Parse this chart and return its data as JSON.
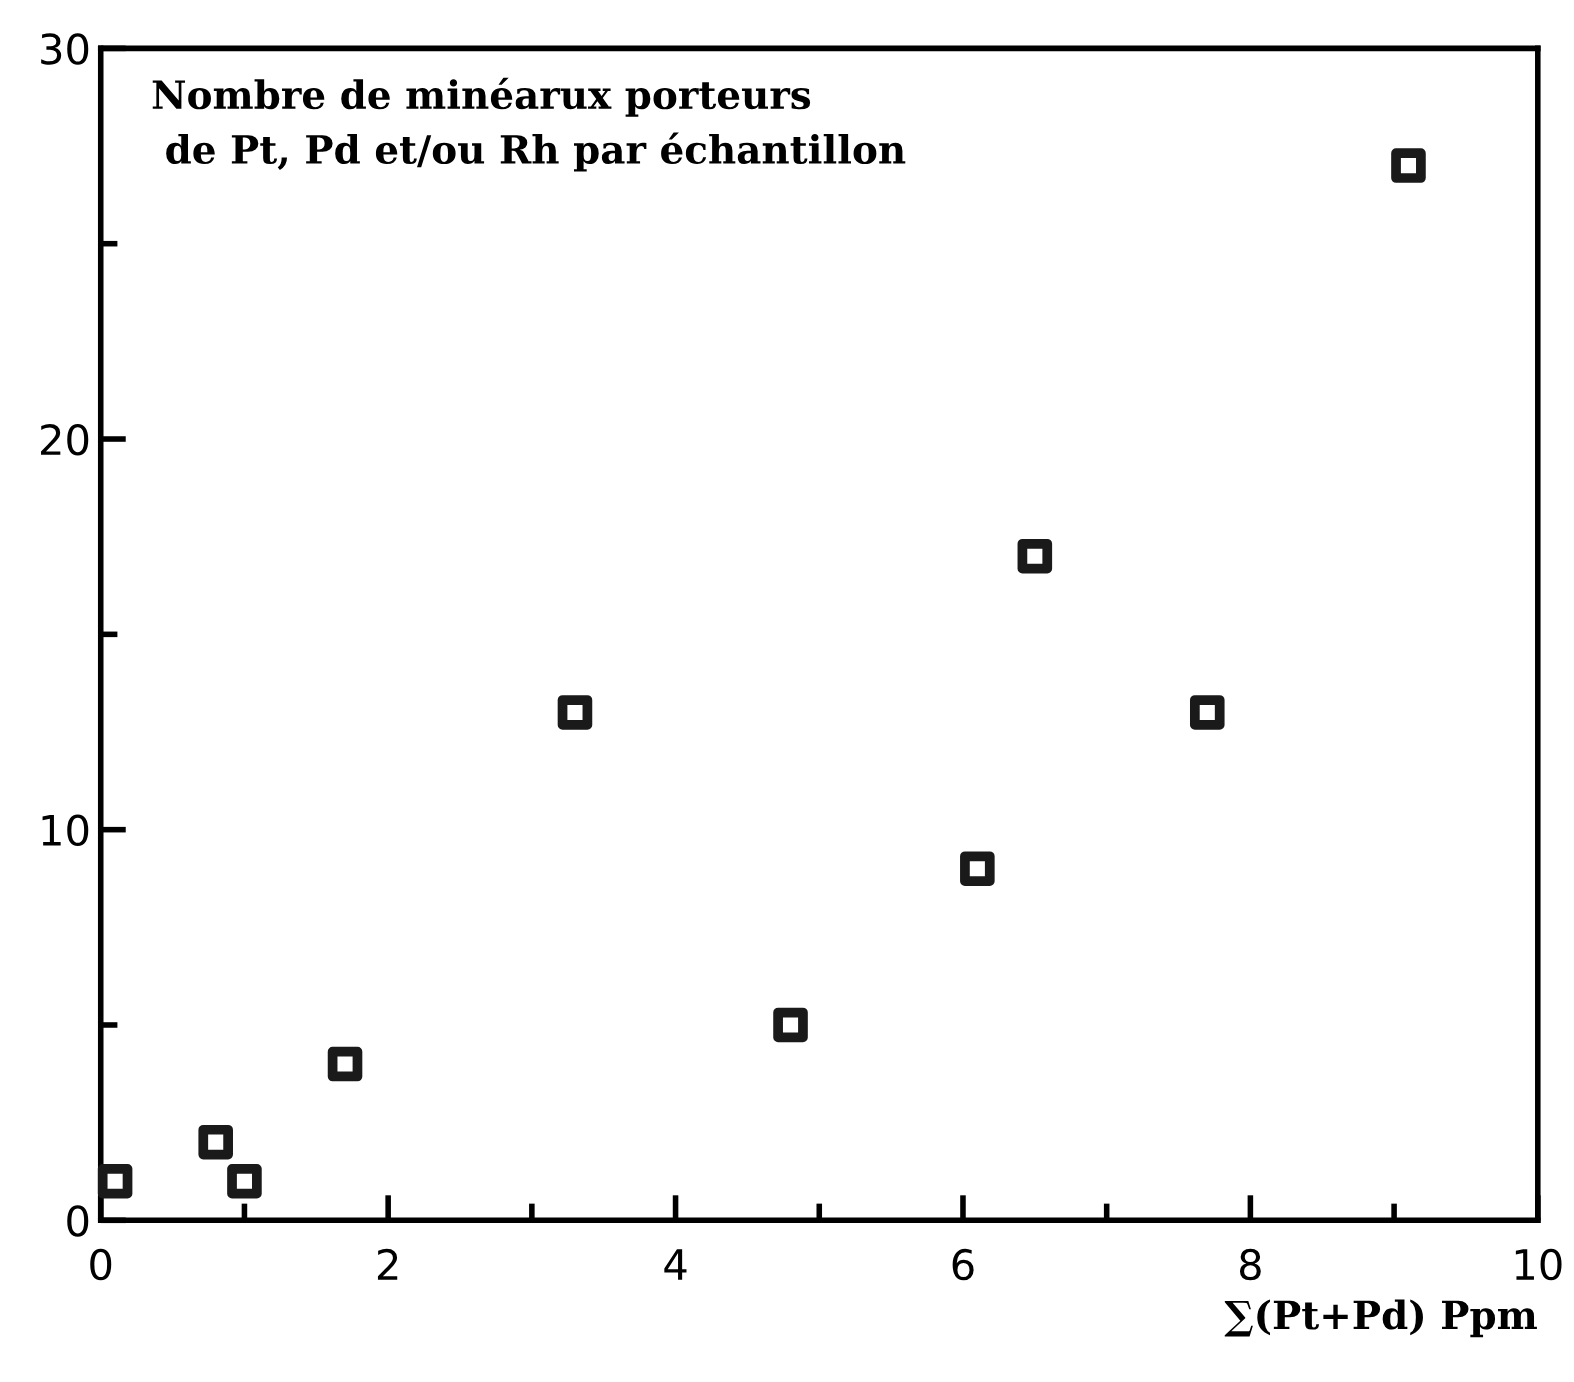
{
  "chart_data": {
    "type": "scatter",
    "title": "Nombre de minéarux porteurs\n de Pt, Pd et/ou Rh par échantillon",
    "xlabel": "∑(Pt+Pd) Ppm",
    "x": [
      0.1,
      0.8,
      1.0,
      1.7,
      3.3,
      4.8,
      6.1,
      6.5,
      7.7,
      9.1
    ],
    "values": [
      1,
      2,
      1,
      4,
      13,
      5,
      9,
      17,
      13,
      27
    ],
    "color": "#1a1a1a",
    "marker": "square",
    "xlim": [
      0,
      10
    ],
    "ylim": [
      0,
      30
    ],
    "xticks": [
      0,
      2,
      4,
      6,
      8,
      10
    ],
    "yticks": [
      0,
      10,
      20,
      30
    ],
    "grid": false,
    "legend": false
  }
}
